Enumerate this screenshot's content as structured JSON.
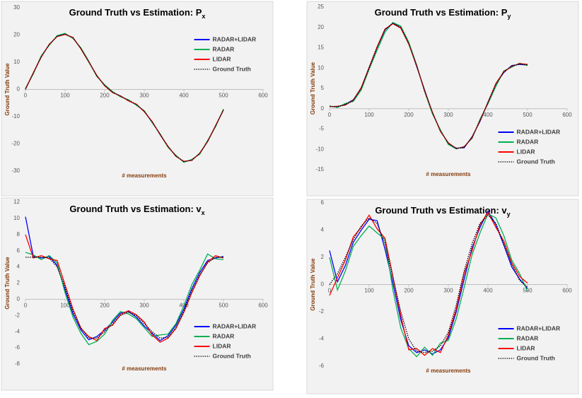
{
  "chart_data": [
    {
      "type": "line",
      "title": "Ground Truth vs Estimation: P",
      "title_sub": "x",
      "x_label": "# measurements",
      "y_label": "Ground Truth Value",
      "legend": "upper right",
      "x": [
        0,
        20,
        40,
        60,
        80,
        100,
        120,
        140,
        160,
        180,
        200,
        220,
        240,
        260,
        280,
        300,
        320,
        340,
        360,
        380,
        400,
        420,
        440,
        460,
        480,
        500
      ],
      "xlim": [
        0,
        600
      ],
      "xticks": [
        0,
        100,
        200,
        300,
        400,
        500,
        600
      ],
      "ylim": [
        -30,
        30
      ],
      "yticks": [
        -30,
        -20,
        -10,
        0,
        10,
        20,
        30
      ],
      "series": [
        {
          "name": "RADAR+LIDAR",
          "color": "#0000ff",
          "values": [
            0.2,
            6.1,
            12.2,
            16.4,
            19.6,
            20.4,
            18.9,
            15.1,
            10.2,
            5.1,
            1.4,
            -1.1,
            -2.4,
            -4.1,
            -5.6,
            -8.1,
            -11.9,
            -16.6,
            -21.1,
            -24.4,
            -26.6,
            -25.9,
            -23.6,
            -19.1,
            -13.4,
            -7.4
          ]
        },
        {
          "name": "RADAR",
          "color": "#00b050",
          "values": [
            0.4,
            5.8,
            12.4,
            16.2,
            19.8,
            20.6,
            18.7,
            15.3,
            10.4,
            4.8,
            1.7,
            -0.8,
            -2.7,
            -3.8,
            -5.8,
            -7.8,
            -12.2,
            -16.3,
            -21.3,
            -24.2,
            -26.8,
            -25.7,
            -23.8,
            -18.8,
            -13.7,
            -7.2
          ]
        },
        {
          "name": "LIDAR",
          "color": "#ff0000",
          "values": [
            0.1,
            6.2,
            11.9,
            16.6,
            19.4,
            20.2,
            19.1,
            14.9,
            10.1,
            5.2,
            1.3,
            -1.2,
            -2.4,
            -4.2,
            -5.4,
            -8.2,
            -11.8,
            -16.6,
            -20.9,
            -24.6,
            -26.4,
            -26.1,
            -23.4,
            -19.2,
            -13.3,
            -7.6
          ]
        },
        {
          "name": "Ground Truth",
          "color": "#000000",
          "line_style": "dotted",
          "values": [
            0,
            6,
            12,
            16.5,
            19.5,
            20.3,
            19,
            15,
            10,
            5,
            1.5,
            -1,
            -2.5,
            -4,
            -5.5,
            -8,
            -12,
            -16.5,
            -21,
            -24.5,
            -26.5,
            -26,
            -23.5,
            -19,
            -13.5,
            -7.5
          ]
        }
      ]
    },
    {
      "type": "line",
      "title": "Ground Truth vs Estimation: P",
      "title_sub": "y",
      "x_label": "# measurements",
      "y_label": "Ground Truth Value",
      "legend": "lower right",
      "x": [
        0,
        20,
        40,
        60,
        80,
        100,
        120,
        140,
        160,
        180,
        200,
        220,
        240,
        260,
        280,
        300,
        320,
        340,
        360,
        380,
        400,
        420,
        440,
        460,
        480,
        500
      ],
      "xlim": [
        0,
        600
      ],
      "xticks": [
        0,
        100,
        200,
        300,
        400,
        500,
        600
      ],
      "ylim": [
        -15,
        25
      ],
      "yticks": [
        -15,
        -10,
        -5,
        0,
        5,
        10,
        15,
        20,
        25
      ],
      "series": [
        {
          "name": "RADAR+LIDAR",
          "color": "#0000ff",
          "values": [
            0.6,
            0.4,
            1.1,
            2.2,
            5.1,
            10.2,
            15.1,
            19.4,
            21.1,
            19.9,
            16.1,
            10.4,
            4.6,
            -1.1,
            -5.4,
            -8.6,
            -9.7,
            -9.6,
            -6.9,
            -3.1,
            1.6,
            6.1,
            8.9,
            10.6,
            10.9,
            10.7
          ]
        },
        {
          "name": "RADAR",
          "color": "#00b050",
          "values": [
            0.7,
            0.3,
            1.3,
            1.8,
            4.6,
            9.7,
            14.4,
            18.8,
            21.2,
            20.3,
            16.4,
            10.8,
            4.2,
            -1.3,
            -5.2,
            -8.8,
            -9.9,
            -9.3,
            -7.3,
            -2.6,
            1.2,
            5.5,
            9.3,
            10.2,
            11.2,
            10.6
          ]
        },
        {
          "name": "LIDAR",
          "color": "#ff0000",
          "values": [
            0.5,
            0.6,
            0.9,
            2.1,
            5.2,
            10.1,
            15.2,
            19.6,
            20.9,
            19.8,
            15.9,
            10.6,
            4.4,
            -0.9,
            -5.6,
            -8.4,
            -9.8,
            -9.4,
            -7.1,
            -2.9,
            1.5,
            6.2,
            9.1,
            10.4,
            11.1,
            10.9
          ]
        },
        {
          "name": "Ground Truth",
          "color": "#000000",
          "line_style": "dotted",
          "values": [
            0.5,
            0.5,
            1,
            2,
            5,
            10,
            15,
            19.5,
            21,
            20,
            16,
            10.5,
            4.5,
            -1,
            -5.5,
            -8.5,
            -9.8,
            -9.5,
            -7,
            -3,
            1.5,
            6,
            9,
            10.5,
            11,
            10.8
          ]
        }
      ]
    },
    {
      "type": "line",
      "title": "Ground Truth vs Estimation: v",
      "title_sub": "x",
      "x_label": "# measurements",
      "y_label": "Ground Truth Value",
      "legend": "lower right",
      "x": [
        0,
        20,
        40,
        60,
        80,
        100,
        120,
        140,
        160,
        180,
        200,
        220,
        240,
        260,
        280,
        300,
        320,
        340,
        360,
        380,
        400,
        420,
        440,
        460,
        480,
        500
      ],
      "xlim": [
        0,
        600
      ],
      "xticks": [
        0,
        100,
        200,
        300,
        400,
        500,
        600
      ],
      "ylim": [
        -8,
        12
      ],
      "yticks": [
        -8,
        -6,
        -4,
        -2,
        0,
        2,
        4,
        6,
        8,
        10,
        12
      ],
      "series": [
        {
          "name": "RADAR+LIDAR",
          "color": "#0000ff",
          "values": [
            10.2,
            5.3,
            5.1,
            5.3,
            4.2,
            1.2,
            -1.8,
            -3.8,
            -5.0,
            -4.6,
            -3.8,
            -2.8,
            -1.7,
            -1.5,
            -2.2,
            -3.3,
            -4.2,
            -5.1,
            -4.5,
            -3.2,
            -1.2,
            1.3,
            3.3,
            4.8,
            5.1,
            5.3
          ]
        },
        {
          "name": "RADAR",
          "color": "#00b050",
          "values": [
            5.8,
            5.5,
            4.9,
            5.4,
            4.5,
            0.8,
            -2.2,
            -4.2,
            -5.6,
            -5.2,
            -4.3,
            -2.6,
            -1.5,
            -1.8,
            -2.4,
            -3.5,
            -4.6,
            -4.4,
            -4.3,
            -3.0,
            -0.8,
            1.8,
            3.6,
            5.6,
            5.0,
            4.9
          ]
        },
        {
          "name": "LIDAR",
          "color": "#ff0000",
          "values": [
            8,
            5.1,
            5.4,
            5.0,
            4.8,
            1.8,
            -1.2,
            -3.6,
            -4.6,
            -5.1,
            -3.6,
            -3.2,
            -1.9,
            -1.4,
            -1.9,
            -2.8,
            -4.4,
            -5.3,
            -4.8,
            -3.6,
            -1.6,
            0.8,
            2.9,
            4.6,
            5.4,
            5.1
          ]
        },
        {
          "name": "Ground Truth",
          "color": "#000000",
          "line_style": "dotted",
          "values": [
            5.2,
            5.2,
            5.2,
            5.1,
            4,
            1.5,
            -1.5,
            -3.5,
            -4.8,
            -4.8,
            -4,
            -3,
            -2,
            -1.6,
            -2,
            -3,
            -4,
            -4.8,
            -4.7,
            -3.5,
            -1.5,
            1,
            3,
            4.5,
            5.2,
            5.2
          ]
        }
      ]
    },
    {
      "type": "line",
      "title": "Ground Truth vs Estimation: v",
      "title_sub": "y",
      "x_label": "# measurements",
      "y_label": "Ground Truth Value",
      "legend": "lower right",
      "x": [
        0,
        20,
        40,
        60,
        80,
        100,
        120,
        140,
        160,
        180,
        200,
        220,
        240,
        260,
        280,
        300,
        320,
        340,
        360,
        380,
        400,
        420,
        440,
        460,
        480,
        500
      ],
      "xlim": [
        0,
        600
      ],
      "xticks": [
        0,
        100,
        200,
        300,
        400,
        500,
        600
      ],
      "ylim": [
        -6,
        6
      ],
      "yticks": [
        -6,
        -4,
        -2,
        0,
        2,
        4,
        6
      ],
      "series": [
        {
          "name": "RADAR+LIDAR",
          "color": "#0000ff",
          "values": [
            2.5,
            0.2,
            1.4,
            3.1,
            4,
            4.8,
            4.7,
            2.6,
            0.1,
            -2.6,
            -4.5,
            -5,
            -4.8,
            -5.1,
            -4.8,
            -3.9,
            -2,
            0.4,
            2.7,
            4.2,
            5.4,
            4.4,
            2.9,
            1.3,
            0.4,
            -0.3
          ]
        },
        {
          "name": "RADAR",
          "color": "#00b050",
          "values": [
            2,
            -0.4,
            1.0,
            2.8,
            3.6,
            4.3,
            3.8,
            3.3,
            -0.4,
            -3.2,
            -4.7,
            -5.3,
            -4.6,
            -5.2,
            -4.3,
            -4.1,
            -2.5,
            -0.2,
            2.2,
            3.8,
            5.2,
            4.9,
            3.6,
            1.8,
            0.8,
            -0.5
          ]
        },
        {
          "name": "LIDAR",
          "color": "#ff0000",
          "values": [
            -0.8,
            0.5,
            1.8,
            3.5,
            4.2,
            5.1,
            4.1,
            3.4,
            0.6,
            -2.3,
            -4.8,
            -4.7,
            -5.2,
            -4.7,
            -5.0,
            -3.7,
            -1.8,
            0.8,
            2.5,
            4.4,
            5.3,
            4.2,
            3.2,
            1.6,
            0.6,
            0.1
          ]
        },
        {
          "name": "Ground Truth",
          "color": "#000000",
          "line_style": "dotted",
          "values": [
            0,
            0.8,
            2,
            3.3,
            4.3,
            4.9,
            4.5,
            3,
            0.5,
            -2,
            -4,
            -4.9,
            -5,
            -4.9,
            -4.5,
            -3.5,
            -1.5,
            1,
            3,
            4.5,
            5.1,
            4.5,
            3,
            1.5,
            0.3,
            -0.2
          ]
        }
      ]
    }
  ]
}
